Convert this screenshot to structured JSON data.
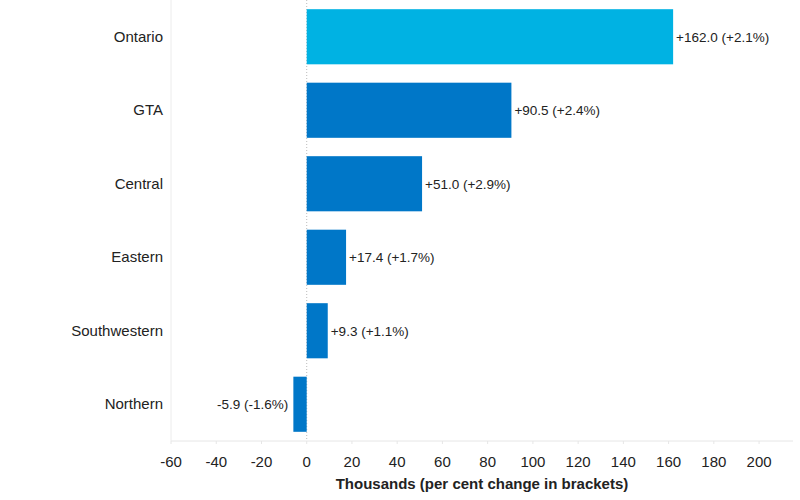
{
  "chart_data": {
    "type": "bar",
    "orientation": "horizontal",
    "x_label": "Thousands (per cent change in brackets)",
    "categories": [
      "Ontario",
      "GTA",
      "Central",
      "Eastern",
      "Southwestern",
      "Northern"
    ],
    "values": [
      162.0,
      90.5,
      51.0,
      17.4,
      9.3,
      -5.9
    ],
    "value_labels": [
      "+162.0 (+2.1%)",
      "+90.5 (+2.4%)",
      "+51.0 (+2.9%)",
      "+17.4 (+1.7%)",
      "+9.3 (+1.1%)",
      "-5.9 (-1.6%)"
    ],
    "colors": [
      "#00b2e3",
      "#0077c8",
      "#0077c8",
      "#0077c8",
      "#0077c8",
      "#0077c8"
    ],
    "xlim": [
      -60,
      215
    ],
    "xticks": [
      -60,
      -40,
      -20,
      0,
      20,
      40,
      60,
      80,
      100,
      120,
      140,
      160,
      180,
      200
    ],
    "grid": false,
    "data_labels": true
  }
}
